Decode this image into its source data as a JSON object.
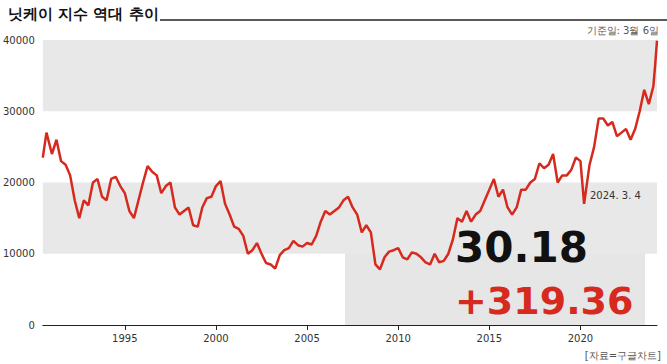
{
  "chart_data": {
    "type": "line",
    "title": "닛케이 지수 역대 추이",
    "subtitle": "기준일: 3월 6일",
    "source": "[자료=구글차트]",
    "annotations": [
      "2024. 3. 4",
      "30.18",
      "+319.36"
    ],
    "color": "#d62a1e",
    "grid": true,
    "xlim": [
      1990.5,
      2024.2
    ],
    "xticks": [
      1995,
      2000,
      2005,
      2010,
      2015,
      2020
    ],
    "ylim": [
      0,
      40000
    ],
    "yticks": [
      0,
      10000,
      20000,
      30000,
      40000
    ],
    "x": [
      1990.5,
      1990.7,
      1991.0,
      1991.25,
      1991.5,
      1991.75,
      1992.0,
      1992.25,
      1992.5,
      1992.75,
      1993.0,
      1993.25,
      1993.5,
      1993.75,
      1994.0,
      1994.25,
      1994.5,
      1994.75,
      1995.0,
      1995.25,
      1995.5,
      1995.75,
      1996.0,
      1996.25,
      1996.5,
      1996.75,
      1997.0,
      1997.25,
      1997.5,
      1997.75,
      1998.0,
      1998.25,
      1998.5,
      1998.75,
      1999.0,
      1999.25,
      1999.5,
      1999.75,
      2000.0,
      2000.25,
      2000.5,
      2000.75,
      2001.0,
      2001.25,
      2001.5,
      2001.75,
      2002.0,
      2002.25,
      2002.5,
      2002.75,
      2003.0,
      2003.25,
      2003.5,
      2003.75,
      2004.0,
      2004.25,
      2004.5,
      2004.75,
      2005.0,
      2005.25,
      2005.5,
      2005.75,
      2006.0,
      2006.25,
      2006.5,
      2006.75,
      2007.0,
      2007.25,
      2007.5,
      2007.75,
      2008.0,
      2008.25,
      2008.5,
      2008.75,
      2009.0,
      2009.25,
      2009.5,
      2009.75,
      2010.0,
      2010.25,
      2010.5,
      2010.75,
      2011.0,
      2011.25,
      2011.5,
      2011.75,
      2012.0,
      2012.25,
      2012.5,
      2012.75,
      2013.0,
      2013.25,
      2013.5,
      2013.75,
      2014.0,
      2014.25,
      2014.5,
      2014.75,
      2015.0,
      2015.25,
      2015.5,
      2015.75,
      2016.0,
      2016.25,
      2016.5,
      2016.75,
      2017.0,
      2017.25,
      2017.5,
      2017.75,
      2018.0,
      2018.25,
      2018.5,
      2018.75,
      2019.0,
      2019.25,
      2019.5,
      2019.75,
      2020.0,
      2020.2,
      2020.5,
      2020.75,
      2021.0,
      2021.25,
      2021.5,
      2021.75,
      2022.0,
      2022.25,
      2022.5,
      2022.75,
      2023.0,
      2023.25,
      2023.5,
      2023.75,
      2024.0,
      2024.1,
      2024.2
    ],
    "values": [
      23500,
      27000,
      24000,
      26000,
      23000,
      22500,
      21000,
      17500,
      15000,
      17500,
      16800,
      20000,
      20500,
      18000,
      17500,
      20500,
      20800,
      19500,
      18500,
      16000,
      15000,
      17500,
      20000,
      22300,
      21500,
      21000,
      18500,
      19500,
      20000,
      16500,
      15500,
      16000,
      16500,
      14000,
      13800,
      16500,
      17800,
      18000,
      19500,
      20200,
      17000,
      15500,
      13800,
      13500,
      12500,
      10000,
      10500,
      11500,
      10000,
      8700,
      8500,
      7900,
      9800,
      10500,
      10800,
      11800,
      11200,
      11000,
      11500,
      11300,
      12500,
      14500,
      16000,
      15500,
      16000,
      16500,
      17500,
      18000,
      16500,
      15500,
      13000,
      14000,
      13000,
      8500,
      7800,
      9500,
      10300,
      10500,
      10800,
      9500,
      9200,
      10200,
      10000,
      9500,
      8800,
      8500,
      10000,
      8800,
      9000,
      10000,
      12000,
      15000,
      14500,
      16000,
      14500,
      15500,
      16000,
      17500,
      19000,
      20500,
      18000,
      19000,
      16500,
      15500,
      16500,
      19000,
      19000,
      20000,
      20500,
      22700,
      22000,
      22500,
      24000,
      20000,
      21000,
      21000,
      21800,
      23500,
      23000,
      17000,
      22500,
      25000,
      29000,
      29000,
      28000,
      28500,
      26500,
      27000,
      27500,
      26000,
      27500,
      30000,
      33000,
      31000,
      33500,
      36500,
      39900
    ]
  }
}
